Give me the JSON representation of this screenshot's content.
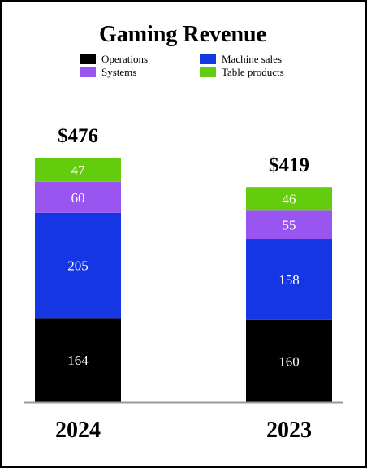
{
  "chart_data": {
    "type": "bar",
    "stacked": true,
    "title": "Gaming Revenue",
    "categories": [
      "2024",
      "2023"
    ],
    "totals": [
      "$476",
      "$419"
    ],
    "series": [
      {
        "name": "Operations",
        "values": [
          164,
          160
        ],
        "color": "#000000"
      },
      {
        "name": "Machine sales",
        "values": [
          205,
          158
        ],
        "color": "#1536e3"
      },
      {
        "name": "Systems",
        "values": [
          60,
          55
        ],
        "color": "#9855f0"
      },
      {
        "name": "Table products",
        "values": [
          47,
          46
        ],
        "color": "#63cc0c"
      }
    ],
    "legend": {
      "placement": "top",
      "order": [
        "Operations",
        "Machine sales",
        "Systems",
        "Table products"
      ]
    },
    "baseline_color": "#9a9a9a"
  }
}
